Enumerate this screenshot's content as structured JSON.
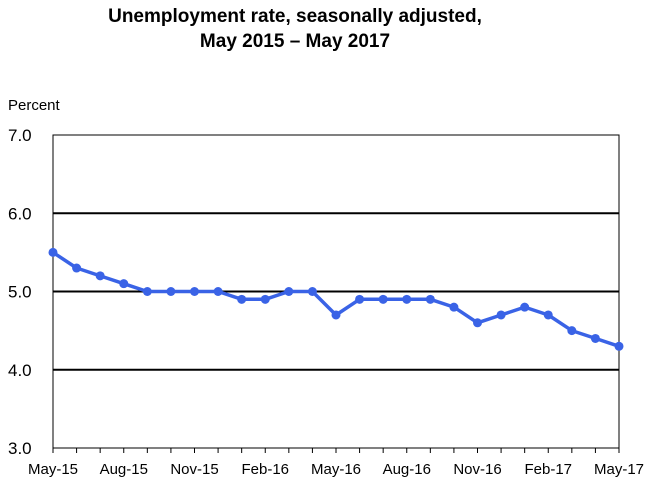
{
  "chart_data": {
    "type": "line",
    "title": [
      "Unemployment rate, seasonally adjusted,",
      "May 2015 – May 2017"
    ],
    "xlabel": "",
    "ylabel": "Percent",
    "ylim": [
      3.0,
      7.0
    ],
    "yticks": [
      "3.0",
      "4.0",
      "5.0",
      "6.0",
      "7.0"
    ],
    "ytick_values": [
      3.0,
      4.0,
      5.0,
      6.0,
      7.0
    ],
    "grid": "horizontal",
    "x": [
      "May-15",
      "Jun-15",
      "Jul-15",
      "Aug-15",
      "Sep-15",
      "Oct-15",
      "Nov-15",
      "Dec-15",
      "Jan-16",
      "Feb-16",
      "Mar-16",
      "Apr-16",
      "May-16",
      "Jun-16",
      "Jul-16",
      "Aug-16",
      "Sep-16",
      "Oct-16",
      "Nov-16",
      "Dec-16",
      "Jan-17",
      "Feb-17",
      "Mar-17",
      "Apr-17",
      "May-17"
    ],
    "xtick_labels": [
      "May-15",
      "Aug-15",
      "Nov-15",
      "Feb-16",
      "May-16",
      "Aug-16",
      "Nov-16",
      "Feb-17",
      "May-17"
    ],
    "xtick_every": 3,
    "series": [
      {
        "name": "Unemployment rate",
        "color": "#3a63e6",
        "values": [
          5.5,
          5.3,
          5.2,
          5.1,
          5.0,
          5.0,
          5.0,
          5.0,
          4.9,
          4.9,
          5.0,
          5.0,
          4.7,
          4.9,
          4.9,
          4.9,
          4.9,
          4.8,
          4.6,
          4.7,
          4.8,
          4.7,
          4.5,
          4.4,
          4.3
        ]
      }
    ]
  }
}
